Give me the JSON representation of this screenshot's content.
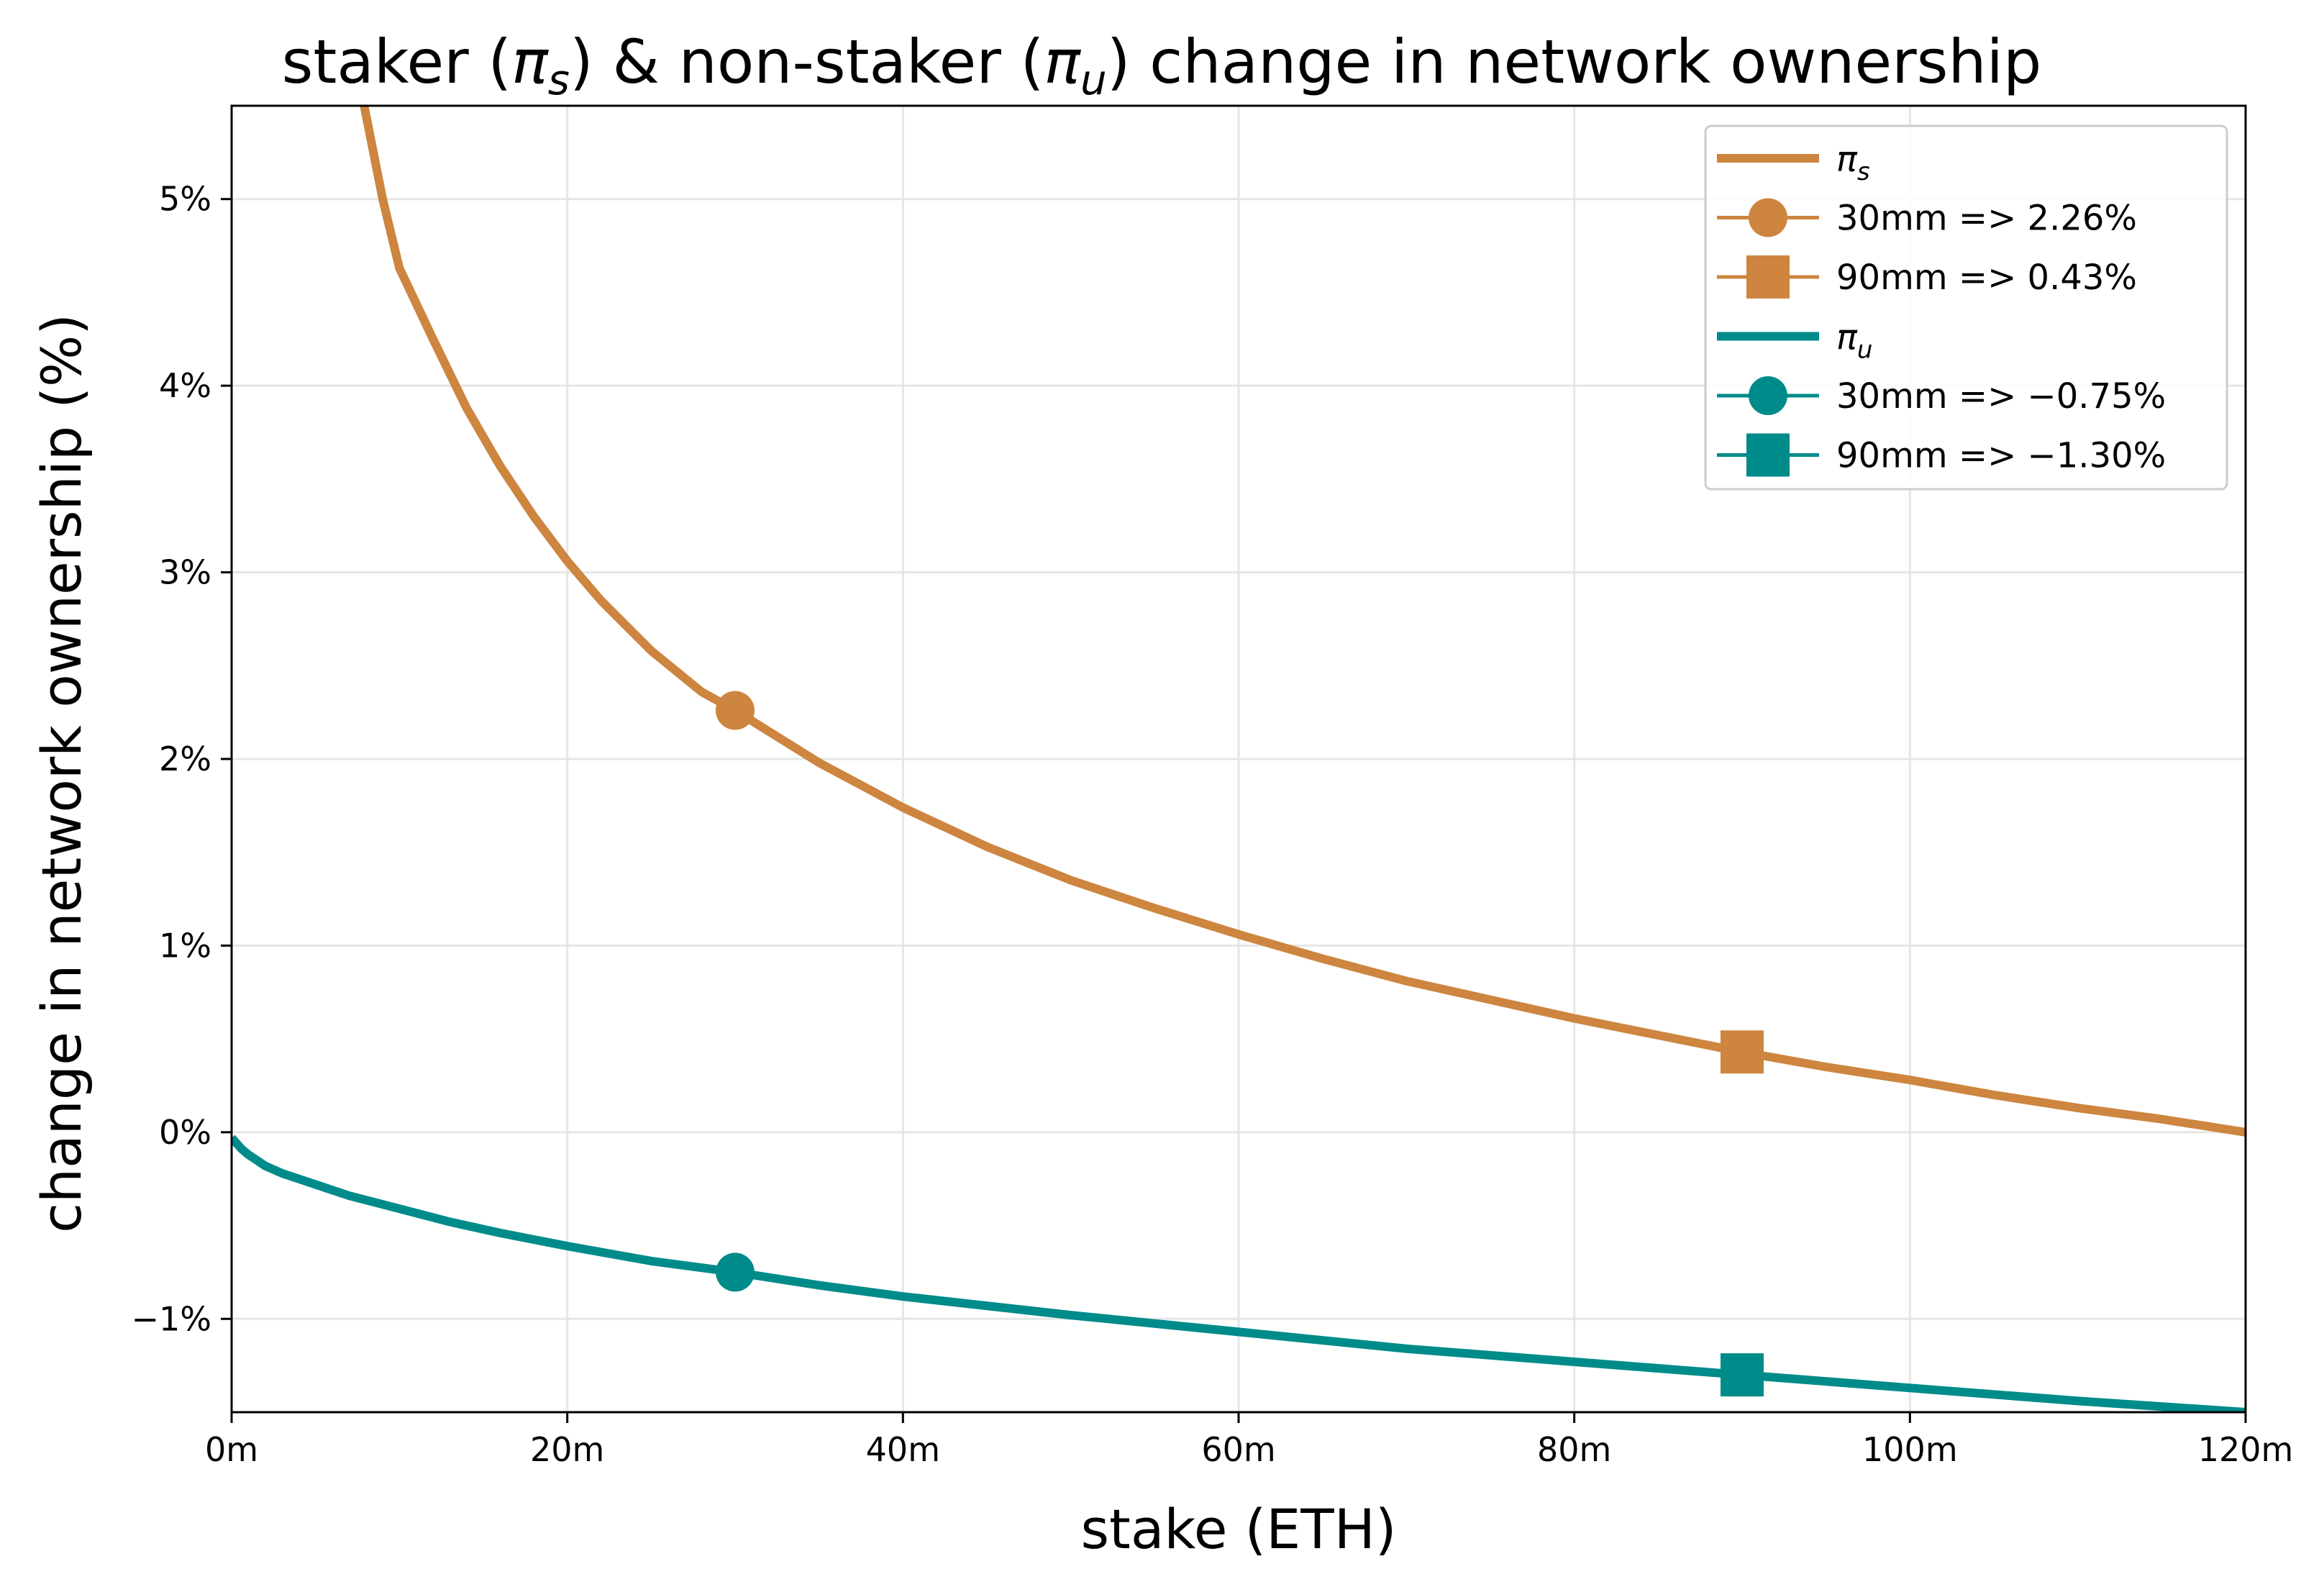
{
  "chart_data": {
    "type": "line",
    "title": {
      "prefix": "staker (",
      "pi_s": "π",
      "sub_s": "s",
      "middle": ") & non-staker (",
      "pi_u": "π",
      "sub_u": "u",
      "suffix": ") change in network ownership"
    },
    "xlabel": "stake (ETH)",
    "ylabel": "change in network ownership (%)",
    "xlim": [
      0,
      120
    ],
    "ylim": [
      -1.5,
      5.5
    ],
    "x_ticks": [
      {
        "value": 0,
        "label": "0m"
      },
      {
        "value": 20,
        "label": "20m"
      },
      {
        "value": 40,
        "label": "40m"
      },
      {
        "value": 60,
        "label": "60m"
      },
      {
        "value": 80,
        "label": "80m"
      },
      {
        "value": 100,
        "label": "100m"
      },
      {
        "value": 120,
        "label": "120m"
      }
    ],
    "y_ticks": [
      {
        "value": -1,
        "label": "−1%"
      },
      {
        "value": 0,
        "label": "0%"
      },
      {
        "value": 1,
        "label": "1%"
      },
      {
        "value": 2,
        "label": "2%"
      },
      {
        "value": 3,
        "label": "3%"
      },
      {
        "value": 4,
        "label": "4%"
      },
      {
        "value": 5,
        "label": "5%"
      }
    ],
    "grid": true,
    "legend_position": "top-right",
    "series": [
      {
        "name": "π_s",
        "legend_symbol": "π",
        "legend_sub": "s",
        "color": "#CD853F",
        "x": [
          7.9,
          9,
          10,
          12,
          14,
          16,
          18,
          20,
          22,
          25,
          28,
          30,
          35,
          40,
          45,
          50,
          55,
          60,
          65,
          70,
          75,
          80,
          85,
          90,
          95,
          100,
          105,
          110,
          115,
          120
        ],
        "y": [
          5.5,
          5.0,
          4.63,
          4.25,
          3.88,
          3.57,
          3.3,
          3.06,
          2.85,
          2.58,
          2.36,
          2.26,
          1.98,
          1.74,
          1.53,
          1.35,
          1.2,
          1.06,
          0.93,
          0.81,
          0.71,
          0.61,
          0.52,
          0.43,
          0.35,
          0.28,
          0.2,
          0.13,
          0.07,
          0.0
        ]
      },
      {
        "name": "π_u",
        "legend_symbol": "π",
        "legend_sub": "u",
        "color": "#008B8B",
        "x": [
          0,
          0.3,
          0.6,
          1,
          1.5,
          2,
          3,
          4,
          5,
          7,
          10,
          13,
          16,
          20,
          25,
          30,
          35,
          40,
          50,
          60,
          70,
          80,
          90,
          100,
          110,
          120
        ],
        "y": [
          -0.03,
          -0.06,
          -0.09,
          -0.12,
          -0.15,
          -0.18,
          -0.22,
          -0.25,
          -0.28,
          -0.34,
          -0.41,
          -0.48,
          -0.54,
          -0.61,
          -0.69,
          -0.75,
          -0.82,
          -0.88,
          -0.98,
          -1.07,
          -1.16,
          -1.23,
          -1.3,
          -1.37,
          -1.44,
          -1.5
        ]
      }
    ],
    "markers": [
      {
        "series": "π_s",
        "shape": "circle",
        "x": 30,
        "y": 2.26,
        "color": "#CD853F",
        "label": "30mm => 2.26%"
      },
      {
        "series": "π_s",
        "shape": "square",
        "x": 90,
        "y": 0.43,
        "color": "#CD853F",
        "label": "90mm => 0.43%"
      },
      {
        "series": "π_u",
        "shape": "circle",
        "x": 30,
        "y": -0.75,
        "color": "#008B8B",
        "label": "30mm => −0.75%"
      },
      {
        "series": "π_u",
        "shape": "square",
        "x": 90,
        "y": -1.3,
        "color": "#008B8B",
        "label": "90mm => −1.30%"
      }
    ]
  },
  "colors": {
    "staker": "#CD853F",
    "non_staker": "#008B8B",
    "grid": "#e6e6e6"
  }
}
